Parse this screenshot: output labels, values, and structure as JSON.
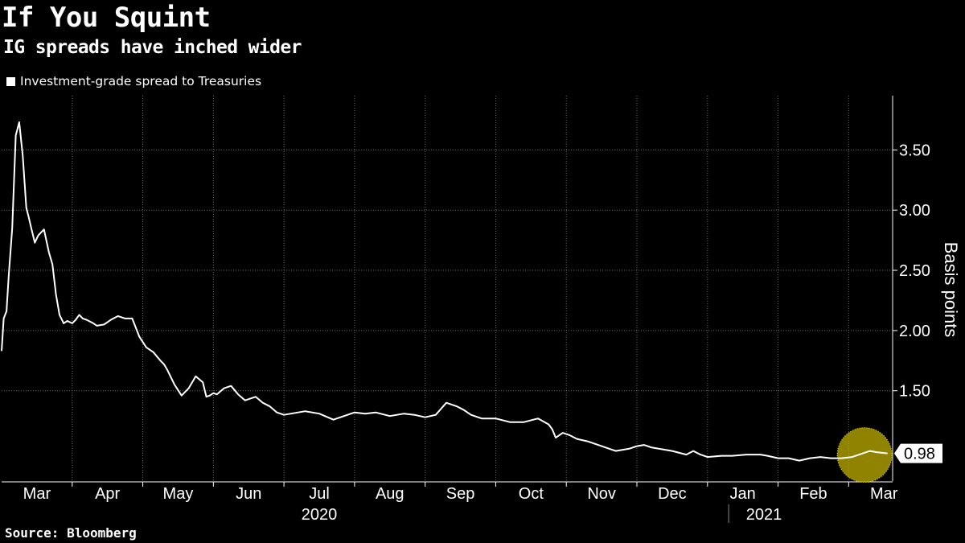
{
  "header": {
    "title": "If You Squint",
    "subtitle": "IG spreads have inched wider"
  },
  "footer": {
    "source": "Source: Bloomberg"
  },
  "colors": {
    "background": "#000000",
    "line": "#ffffff",
    "grid": "#6b6b6b",
    "highlight": "#b8a800"
  },
  "chart_data": {
    "type": "line",
    "title": "If You Squint",
    "subtitle": "IG spreads have inched wider",
    "ylabel": "Basis points",
    "ylim": [
      0.75,
      3.95
    ],
    "yticks": [
      1.5,
      2.0,
      2.5,
      3.0,
      3.5
    ],
    "ytick_labels": [
      "1.50",
      "2.00",
      "2.50",
      "3.00",
      "3.50"
    ],
    "y_unit_note": "x axis in months since Mar 1, 2020",
    "xlim": [
      0,
      12.6
    ],
    "month_labels": [
      "Mar",
      "Apr",
      "May",
      "Jun",
      "Jul",
      "Aug",
      "Sep",
      "Oct",
      "Nov",
      "Dec",
      "Jan",
      "Feb",
      "Mar"
    ],
    "year_labels": [
      {
        "label": "2020",
        "month_index": 4.5
      },
      {
        "label": "2021",
        "month_index": 10.8
      }
    ],
    "year_divider_month": 10.3,
    "last_value": 0.98,
    "last_value_label": "0.98",
    "highlight_window": [
      11.85,
      12.6
    ],
    "legend": [
      "Investment-grade spread to Treasuries"
    ],
    "series": [
      {
        "name": "Investment-grade spread to Treasuries",
        "x": [
          0.0,
          0.03,
          0.07,
          0.1,
          0.15,
          0.2,
          0.25,
          0.3,
          0.35,
          0.38,
          0.42,
          0.47,
          0.52,
          0.6,
          0.67,
          0.72,
          0.77,
          0.82,
          0.88,
          0.93,
          1.0,
          1.05,
          1.1,
          1.15,
          1.2,
          1.3,
          1.35,
          1.45,
          1.55,
          1.65,
          1.75,
          1.85,
          1.95,
          2.05,
          2.15,
          2.25,
          2.3,
          2.35,
          2.45,
          2.55,
          2.65,
          2.75,
          2.85,
          2.9,
          2.95,
          3.0,
          3.05,
          3.15,
          3.25,
          3.35,
          3.45,
          3.5,
          3.6,
          3.7,
          3.8,
          3.9,
          4.0,
          4.1,
          4.3,
          4.5,
          4.7,
          4.9,
          5.0,
          5.15,
          5.3,
          5.5,
          5.7,
          5.85,
          6.0,
          6.15,
          6.3,
          6.45,
          6.55,
          6.65,
          6.8,
          7.0,
          7.2,
          7.4,
          7.6,
          7.75,
          7.8,
          7.85,
          7.95,
          8.05,
          8.15,
          8.3,
          8.5,
          8.7,
          8.9,
          9.0,
          9.1,
          9.2,
          9.3,
          9.5,
          9.7,
          9.8,
          9.9,
          10.0,
          10.2,
          10.35,
          10.55,
          10.75,
          10.85,
          11.0,
          11.15,
          11.3,
          11.45,
          11.6,
          11.75,
          11.9,
          12.05,
          12.2,
          12.3,
          12.4,
          12.55
        ],
        "values": [
          1.83,
          2.1,
          2.16,
          2.45,
          2.85,
          3.62,
          3.73,
          3.45,
          3.02,
          2.95,
          2.85,
          2.73,
          2.79,
          2.84,
          2.65,
          2.55,
          2.3,
          2.13,
          2.06,
          2.08,
          2.06,
          2.09,
          2.13,
          2.1,
          2.09,
          2.06,
          2.04,
          2.05,
          2.09,
          2.12,
          2.1,
          2.1,
          1.95,
          1.86,
          1.82,
          1.75,
          1.72,
          1.67,
          1.55,
          1.46,
          1.52,
          1.62,
          1.57,
          1.45,
          1.46,
          1.48,
          1.47,
          1.52,
          1.54,
          1.47,
          1.42,
          1.43,
          1.45,
          1.4,
          1.37,
          1.32,
          1.3,
          1.31,
          1.33,
          1.31,
          1.26,
          1.3,
          1.32,
          1.31,
          1.32,
          1.29,
          1.31,
          1.3,
          1.28,
          1.3,
          1.4,
          1.37,
          1.34,
          1.3,
          1.27,
          1.27,
          1.24,
          1.24,
          1.27,
          1.22,
          1.18,
          1.11,
          1.15,
          1.13,
          1.1,
          1.08,
          1.04,
          1.0,
          1.02,
          1.04,
          1.05,
          1.03,
          1.02,
          1.0,
          0.97,
          1.0,
          0.97,
          0.95,
          0.96,
          0.96,
          0.97,
          0.97,
          0.96,
          0.94,
          0.94,
          0.92,
          0.94,
          0.95,
          0.94,
          0.94,
          0.95,
          0.98,
          1.0,
          0.99,
          0.98
        ]
      }
    ]
  }
}
